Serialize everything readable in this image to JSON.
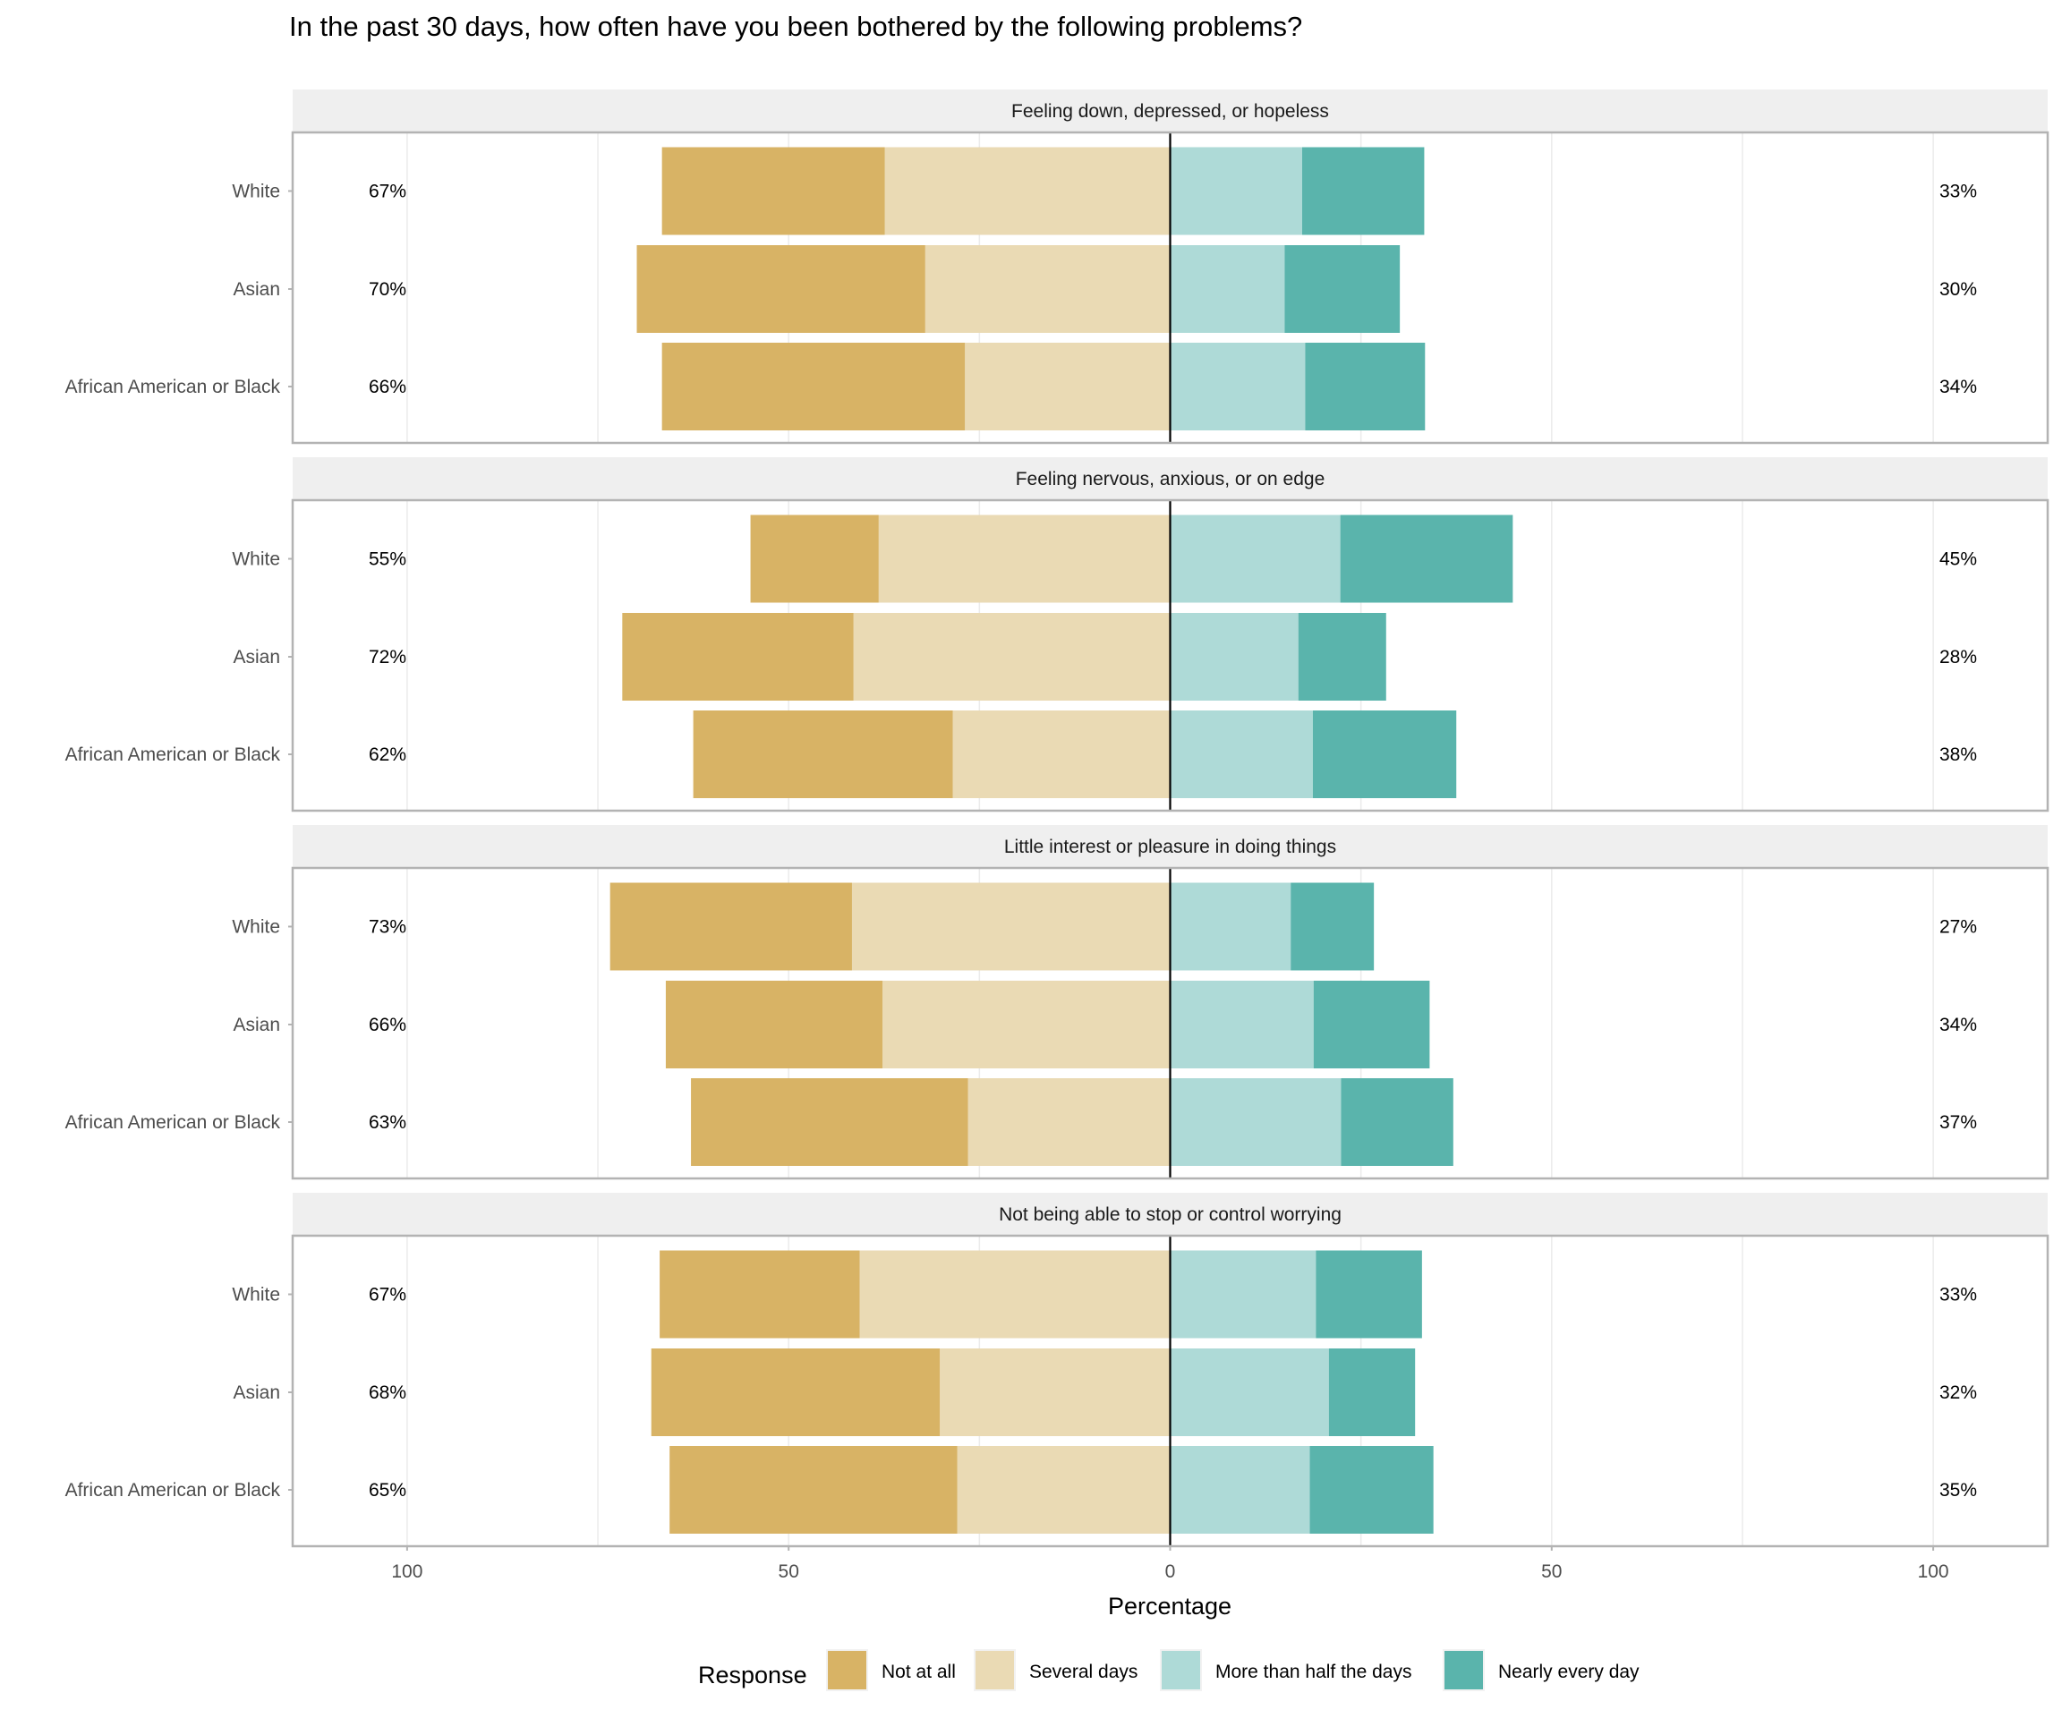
{
  "chart_data": {
    "type": "bar",
    "subtype": "diverging-stacked-horizontal",
    "title": "In the past 30 days, how often have you been bothered by the following problems?",
    "xlabel": "Percentage",
    "ylabel": "",
    "xlim": [
      -115,
      115
    ],
    "x_ticks": [
      -100,
      -50,
      0,
      50,
      100
    ],
    "x_tick_labels": [
      "100",
      "50",
      "0",
      "50",
      "100"
    ],
    "grid": true,
    "legend": {
      "title": "Response",
      "position": "bottom",
      "entries": [
        "Not at all",
        "Several days",
        "More than half the days",
        "Nearly every day"
      ]
    },
    "colors": {
      "Not at all": "#d8b365",
      "Several days": "#eadab4",
      "More than half the days": "#aedad7",
      "Nearly every day": "#5ab4ac"
    },
    "negative_side": [
      "Not at all",
      "Several days"
    ],
    "positive_side": [
      "More than half the days",
      "Nearly every day"
    ],
    "categories": [
      "White",
      "Asian",
      "African American or Black"
    ],
    "panels": [
      {
        "title": "Feeling down, depressed, or hopeless",
        "rows": [
          {
            "group": "White",
            "Not at all": 29.2,
            "Several days": 37.4,
            "More than half the days": 17.3,
            "Nearly every day": 16.0,
            "left_label": "67%",
            "right_label": "33%"
          },
          {
            "group": "Asian",
            "Not at all": 37.8,
            "Several days": 32.1,
            "More than half the days": 15.0,
            "Nearly every day": 15.1,
            "left_label": "70%",
            "right_label": "30%"
          },
          {
            "group": "African American or Black",
            "Not at all": 39.7,
            "Several days": 26.9,
            "More than half the days": 17.7,
            "Nearly every day": 15.7,
            "left_label": "66%",
            "right_label": "34%"
          }
        ]
      },
      {
        "title": "Feeling nervous, anxious, or on edge",
        "rows": [
          {
            "group": "White",
            "Not at all": 16.8,
            "Several days": 38.2,
            "More than half the days": 22.3,
            "Nearly every day": 22.6,
            "left_label": "55%",
            "right_label": "45%"
          },
          {
            "group": "Asian",
            "Not at all": 30.3,
            "Several days": 41.5,
            "More than half the days": 16.8,
            "Nearly every day": 11.5,
            "left_label": "72%",
            "right_label": "28%"
          },
          {
            "group": "African American or Black",
            "Not at all": 34.0,
            "Several days": 28.5,
            "More than half the days": 18.7,
            "Nearly every day": 18.8,
            "left_label": "62%",
            "right_label": "38%"
          }
        ]
      },
      {
        "title": "Little interest or pleasure in doing things",
        "rows": [
          {
            "group": "White",
            "Not at all": 31.7,
            "Several days": 41.7,
            "More than half the days": 15.8,
            "Nearly every day": 10.9,
            "left_label": "73%",
            "right_label": "27%"
          },
          {
            "group": "Asian",
            "Not at all": 28.4,
            "Several days": 37.7,
            "More than half the days": 18.8,
            "Nearly every day": 15.2,
            "left_label": "66%",
            "right_label": "34%"
          },
          {
            "group": "African American or Black",
            "Not at all": 36.3,
            "Several days": 26.5,
            "More than half the days": 22.4,
            "Nearly every day": 14.7,
            "left_label": "63%",
            "right_label": "37%"
          }
        ]
      },
      {
        "title": "Not being able to stop or control worrying",
        "rows": [
          {
            "group": "White",
            "Not at all": 26.2,
            "Several days": 40.7,
            "More than half the days": 19.1,
            "Nearly every day": 13.9,
            "left_label": "67%",
            "right_label": "33%"
          },
          {
            "group": "Asian",
            "Not at all": 37.8,
            "Several days": 30.2,
            "More than half the days": 20.8,
            "Nearly every day": 11.3,
            "left_label": "68%",
            "right_label": "32%"
          },
          {
            "group": "African American or Black",
            "Not at all": 37.7,
            "Several days": 27.9,
            "More than half the days": 18.3,
            "Nearly every day": 16.2,
            "left_label": "65%",
            "right_label": "35%"
          }
        ]
      }
    ]
  }
}
